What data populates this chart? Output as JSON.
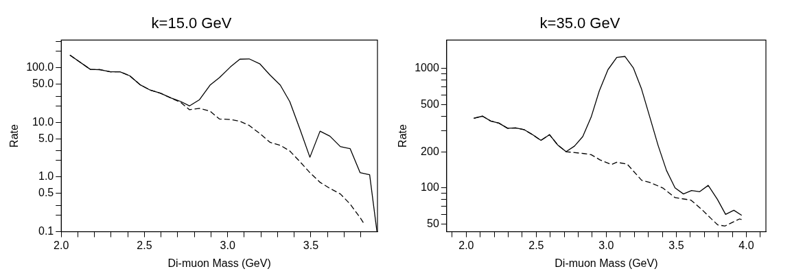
{
  "chart_data": [
    {
      "type": "line",
      "title": "k=15.0 GeV",
      "xlabel": "Di-muon Mass (GeV)",
      "ylabel": "Rate",
      "log": "y",
      "xlim": [
        2.0,
        3.9
      ],
      "xticks": [
        {
          "value": 2.0,
          "label": "2.0"
        },
        {
          "value": 2.1,
          "label": null
        },
        {
          "value": 2.2,
          "label": null
        },
        {
          "value": 2.3,
          "label": null
        },
        {
          "value": 2.4,
          "label": null
        },
        {
          "value": 2.5,
          "label": "2.5"
        },
        {
          "value": 2.6,
          "label": null
        },
        {
          "value": 2.7,
          "label": null
        },
        {
          "value": 2.8,
          "label": null
        },
        {
          "value": 2.9,
          "label": null
        },
        {
          "value": 3.0,
          "label": "3.0"
        },
        {
          "value": 3.1,
          "label": null
        },
        {
          "value": 3.2,
          "label": null
        },
        {
          "value": 3.3,
          "label": null
        },
        {
          "value": 3.4,
          "label": null
        },
        {
          "value": 3.5,
          "label": "3.5"
        },
        {
          "value": 3.6,
          "label": null
        },
        {
          "value": 3.7,
          "label": null
        },
        {
          "value": 3.8,
          "label": null
        }
      ],
      "ylim": [
        0.1,
        320
      ],
      "yticks": [
        0.1,
        {
          "value": 0.2,
          "label": null
        },
        {
          "value": 0.3,
          "label": null
        },
        0.5,
        {
          "value": 1,
          "label": "1.0"
        },
        {
          "value": 2,
          "label": null
        },
        {
          "value": 3,
          "label": null
        },
        {
          "value": 5,
          "label": "5.0"
        },
        {
          "value": 10,
          "label": "10.0"
        },
        {
          "value": 20,
          "label": null
        },
        {
          "value": 30,
          "label": null
        },
        {
          "value": 50,
          "label": "50.0"
        },
        {
          "value": 100,
          "label": "100.0"
        },
        {
          "value": 200,
          "label": null
        },
        {
          "value": 300,
          "label": null
        }
      ],
      "series": [
        {
          "color": "#000000",
          "line_style": "solid",
          "x": [
            2.052,
            2.175,
            2.234,
            2.295,
            2.353,
            2.412,
            2.473,
            2.534,
            2.597,
            2.658,
            2.719,
            2.771,
            2.831,
            2.894,
            2.951,
            3.016,
            3.073,
            3.129,
            3.194,
            3.255,
            3.316,
            3.373,
            3.435,
            3.494,
            3.555,
            3.614,
            3.677,
            3.736,
            3.796,
            3.853,
            3.897
          ],
          "values": [
            170,
            93,
            92,
            84,
            84,
            71,
            49,
            39,
            34,
            28,
            24,
            20,
            26,
            48,
            66,
            103,
            143,
            145,
            117,
            73,
            48,
            24,
            7.4,
            2.3,
            6.9,
            5.6,
            3.6,
            3.3,
            1.2,
            1.1,
            0.1
          ]
        },
        {
          "color": "#000000",
          "line_style": "dashed",
          "x": [
            2.052,
            2.175,
            2.234,
            2.295,
            2.353,
            2.412,
            2.473,
            2.534,
            2.597,
            2.658,
            2.719,
            2.771,
            2.831,
            2.894,
            2.951,
            3.016,
            3.073,
            3.129,
            3.194,
            3.255,
            3.316,
            3.373,
            3.435,
            3.494,
            3.555,
            3.614,
            3.677,
            3.736,
            3.796,
            3.819
          ],
          "values": [
            170,
            93,
            92,
            84,
            84,
            71,
            49,
            39,
            34,
            28,
            23,
            17,
            18,
            16,
            11.5,
            11.3,
            10.5,
            8.8,
            6.2,
            4.3,
            3.8,
            3.0,
            1.9,
            1.2,
            0.8,
            0.62,
            0.49,
            0.32,
            0.18,
            0.14
          ]
        }
      ]
    },
    {
      "type": "line",
      "title": "k=35.0 GeV",
      "xlabel": "Di-muon Mass (GeV)",
      "ylabel": "Rate",
      "log": "y",
      "xlim": [
        1.86,
        4.14
      ],
      "xticks": [
        {
          "value": 1.9,
          "label": null
        },
        {
          "value": 2.0,
          "label": "2.0"
        },
        {
          "value": 2.1,
          "label": null
        },
        {
          "value": 2.2,
          "label": null
        },
        {
          "value": 2.3,
          "label": null
        },
        {
          "value": 2.4,
          "label": null
        },
        {
          "value": 2.5,
          "label": "2.5"
        },
        {
          "value": 2.6,
          "label": null
        },
        {
          "value": 2.7,
          "label": null
        },
        {
          "value": 2.8,
          "label": null
        },
        {
          "value": 2.9,
          "label": null
        },
        {
          "value": 3.0,
          "label": "3.0"
        },
        {
          "value": 3.1,
          "label": null
        },
        {
          "value": 3.2,
          "label": null
        },
        {
          "value": 3.3,
          "label": null
        },
        {
          "value": 3.4,
          "label": null
        },
        {
          "value": 3.5,
          "label": "3.5"
        },
        {
          "value": 3.6,
          "label": null
        },
        {
          "value": 3.7,
          "label": null
        },
        {
          "value": 3.8,
          "label": null
        },
        {
          "value": 3.9,
          "label": null
        },
        {
          "value": 4.0,
          "label": "4.0"
        },
        {
          "value": 4.1,
          "label": null
        }
      ],
      "ylim": [
        43,
        1730
      ],
      "yticks": [
        50,
        {
          "value": 60,
          "label": null
        },
        {
          "value": 70,
          "label": null
        },
        {
          "value": 80,
          "label": null
        },
        {
          "value": 90,
          "label": null
        },
        100,
        200,
        {
          "value": 300,
          "label": null
        },
        {
          "value": 400,
          "label": null
        },
        500,
        {
          "value": 600,
          "label": null
        },
        {
          "value": 700,
          "label": null
        },
        {
          "value": 800,
          "label": null
        },
        {
          "value": 900,
          "label": null
        },
        1000
      ],
      "series": [
        {
          "color": "#000000",
          "line_style": "solid",
          "x": [
            2.054,
            2.116,
            2.175,
            2.233,
            2.295,
            2.353,
            2.412,
            2.474,
            2.533,
            2.595,
            2.653,
            2.713,
            2.773,
            2.832,
            2.892,
            2.95,
            3.012,
            3.075,
            3.133,
            3.193,
            3.252,
            3.312,
            3.37,
            3.43,
            3.491,
            3.551,
            3.609,
            3.667,
            3.728,
            3.794,
            3.852,
            3.911,
            3.967
          ],
          "values": [
            383,
            399,
            363,
            349,
            316,
            318,
            308,
            279,
            250,
            279,
            229,
            201,
            224,
            269,
            392,
            649,
            978,
            1239,
            1262,
            1013,
            672,
            388,
            227,
            140,
            100,
            89,
            95,
            93,
            105,
            80,
            60,
            65,
            59
          ]
        },
        {
          "color": "#000000",
          "line_style": "dashed",
          "x": [
            2.054,
            2.116,
            2.175,
            2.233,
            2.295,
            2.353,
            2.412,
            2.474,
            2.533,
            2.595,
            2.653,
            2.713,
            2.84,
            2.892,
            2.954,
            3.037,
            3.075,
            3.15,
            3.252,
            3.312,
            3.403,
            3.491,
            3.605,
            3.682,
            3.744,
            3.796,
            3.848,
            3.952,
            3.973
          ],
          "values": [
            383,
            399,
            363,
            349,
            316,
            318,
            308,
            279,
            250,
            279,
            229,
            201,
            194,
            190,
            172,
            157,
            164,
            158,
            116,
            111,
            100,
            83,
            79,
            66,
            56,
            49,
            48,
            55,
            54
          ]
        }
      ]
    }
  ]
}
